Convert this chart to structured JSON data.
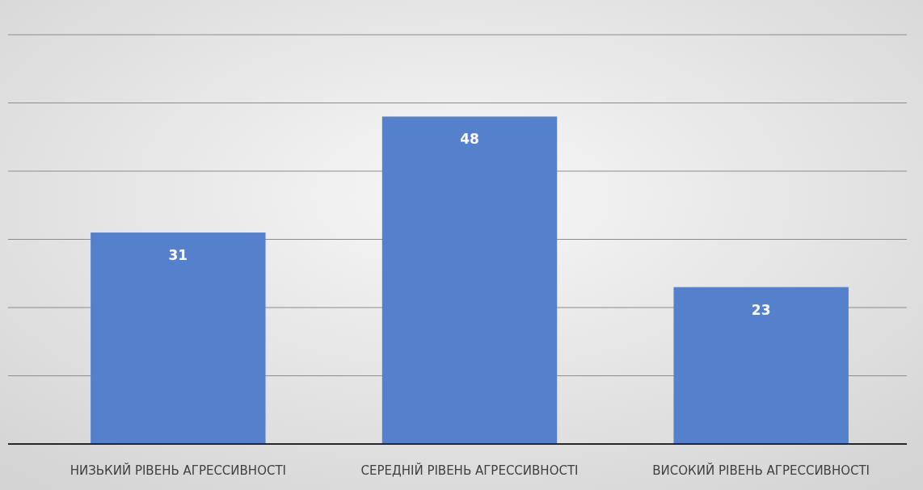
{
  "chart_data": {
    "type": "bar",
    "categories": [
      "НИЗЬКИЙ РІВЕНЬ АГРЕССИВНОСТІ",
      "СЕРЕДНІЙ РІВЕНЬ АГРЕССИВНОСТІ",
      "ВИСОКИЙ РІВЕНЬ АГРЕССИВНОСТІ"
    ],
    "values": [
      31,
      48,
      23
    ],
    "color": "#5580cc",
    "ylim": [
      0,
      60
    ],
    "yticks": [
      {
        "value": 0,
        "label": null
      },
      {
        "value": 10,
        "label": null
      },
      {
        "value": 20,
        "label": null
      },
      {
        "value": 30,
        "label": null
      },
      {
        "value": 40,
        "label": null
      },
      {
        "value": 50,
        "label": null
      },
      {
        "value": 60,
        "label": null
      }
    ],
    "tick_labels": "x",
    "grid": "y",
    "data_labels": true
  }
}
